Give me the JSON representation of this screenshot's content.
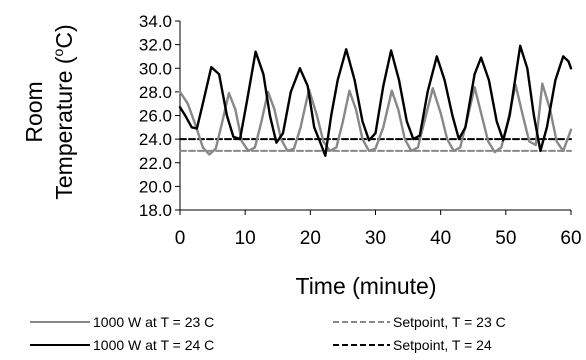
{
  "chart_data": {
    "type": "line",
    "xlabel": "Time (minute)",
    "ylabel_line1": "Room",
    "ylabel_line2": "Temperature (",
    "ylabel_sup": "o",
    "ylabel_end": "C)",
    "xlim": [
      0,
      60
    ],
    "ylim": [
      18,
      34
    ],
    "x_ticks": [
      0,
      10,
      20,
      30,
      40,
      50,
      60
    ],
    "y_ticks": [
      18,
      20,
      22,
      24,
      26,
      28,
      30,
      32,
      34
    ],
    "x_tick_labels": [
      "0",
      "10",
      "20",
      "30",
      "40",
      "50",
      "60"
    ],
    "y_tick_labels": [
      "18.0",
      "20.0",
      "22.0",
      "24.0",
      "26.0",
      "28.0",
      "30.0",
      "32.0",
      "34.0"
    ],
    "grid": false,
    "legend_position": "bottom",
    "series": [
      {
        "name": "1000 W at T = 23 C",
        "color": "#888888",
        "dash": "solid",
        "points": [
          [
            0,
            28.0
          ],
          [
            1.2,
            27.0
          ],
          [
            2.5,
            25.0
          ],
          [
            3.5,
            23.3
          ],
          [
            4.5,
            22.7
          ],
          [
            5.5,
            23.2
          ],
          [
            6.5,
            25.5
          ],
          [
            7.5,
            27.9
          ],
          [
            8.5,
            26.5
          ],
          [
            9.5,
            23.8
          ],
          [
            10.5,
            23.0
          ],
          [
            11.5,
            23.3
          ],
          [
            12.5,
            25.5
          ],
          [
            13.5,
            28.0
          ],
          [
            14.5,
            26.5
          ],
          [
            15.5,
            24.0
          ],
          [
            16.5,
            23.0
          ],
          [
            17.5,
            23.2
          ],
          [
            18.5,
            25.0
          ],
          [
            19.8,
            28.2
          ],
          [
            21.0,
            26.0
          ],
          [
            22.0,
            23.8
          ],
          [
            23.0,
            23.0
          ],
          [
            24.0,
            23.3
          ],
          [
            25.0,
            25.5
          ],
          [
            26.0,
            28.1
          ],
          [
            27.0,
            26.5
          ],
          [
            28.0,
            24.0
          ],
          [
            29.0,
            23.0
          ],
          [
            30.0,
            23.2
          ],
          [
            31.2,
            25.0
          ],
          [
            32.5,
            28.1
          ],
          [
            33.5,
            26.5
          ],
          [
            34.5,
            24.0
          ],
          [
            35.5,
            23.0
          ],
          [
            36.5,
            23.3
          ],
          [
            37.5,
            25.5
          ],
          [
            38.8,
            28.3
          ],
          [
            40.0,
            26.2
          ],
          [
            41.0,
            24.0
          ],
          [
            42.0,
            23.0
          ],
          [
            43.0,
            23.3
          ],
          [
            44.0,
            25.5
          ],
          [
            45.2,
            28.4
          ],
          [
            46.3,
            26.0
          ],
          [
            47.3,
            23.8
          ],
          [
            48.3,
            22.9
          ],
          [
            49.3,
            23.3
          ],
          [
            50.3,
            25.5
          ],
          [
            51.5,
            28.6
          ],
          [
            52.6,
            26.0
          ],
          [
            53.6,
            23.8
          ],
          [
            54.6,
            23.5
          ],
          [
            55.6,
            28.7
          ],
          [
            56.8,
            26.5
          ],
          [
            57.8,
            23.8
          ],
          [
            58.8,
            23.0
          ],
          [
            60.0,
            24.8
          ]
        ]
      },
      {
        "name": "1000 W at T = 24 C",
        "color": "#000000",
        "dash": "solid",
        "points": [
          [
            0,
            26.7
          ],
          [
            0.8,
            26.0
          ],
          [
            1.8,
            25.0
          ],
          [
            2.6,
            24.9
          ],
          [
            3.5,
            27.0
          ],
          [
            4.8,
            30.1
          ],
          [
            6.0,
            29.5
          ],
          [
            7.2,
            26.0
          ],
          [
            8.2,
            24.2
          ],
          [
            9.2,
            24.0
          ],
          [
            10.2,
            27.0
          ],
          [
            11.6,
            31.4
          ],
          [
            12.8,
            29.5
          ],
          [
            13.8,
            26.0
          ],
          [
            14.8,
            23.7
          ],
          [
            15.8,
            24.5
          ],
          [
            17.0,
            28.0
          ],
          [
            18.4,
            30.0
          ],
          [
            19.6,
            28.5
          ],
          [
            20.6,
            25.0
          ],
          [
            21.6,
            23.6
          ],
          [
            22.3,
            22.6
          ],
          [
            23.2,
            26.0
          ],
          [
            24.2,
            29.0
          ],
          [
            25.5,
            31.6
          ],
          [
            26.8,
            29.0
          ],
          [
            28.0,
            25.5
          ],
          [
            29.0,
            23.9
          ],
          [
            30.0,
            24.5
          ],
          [
            31.2,
            28.5
          ],
          [
            32.4,
            31.5
          ],
          [
            33.6,
            29.0
          ],
          [
            34.8,
            25.5
          ],
          [
            35.8,
            24.0
          ],
          [
            36.8,
            24.3
          ],
          [
            38.0,
            28.0
          ],
          [
            39.4,
            31.0
          ],
          [
            40.6,
            29.0
          ],
          [
            41.8,
            26.0
          ],
          [
            42.8,
            24.0
          ],
          [
            43.8,
            25.0
          ],
          [
            45.2,
            29.5
          ],
          [
            46.2,
            30.9
          ],
          [
            47.4,
            29.0
          ],
          [
            48.6,
            25.5
          ],
          [
            49.6,
            23.9
          ],
          [
            50.6,
            26.0
          ],
          [
            52.2,
            31.9
          ],
          [
            53.3,
            30.0
          ],
          [
            54.3,
            26.0
          ],
          [
            55.3,
            23.0
          ],
          [
            56.3,
            25.0
          ],
          [
            57.6,
            29.0
          ],
          [
            58.8,
            31.0
          ],
          [
            59.6,
            30.6
          ],
          [
            60.0,
            30.0
          ]
        ]
      },
      {
        "name": "Setpoint, T = 23 C",
        "color": "#888888",
        "dash": "dashed",
        "points": [
          [
            0,
            23.0
          ],
          [
            60,
            23.0
          ]
        ]
      },
      {
        "name": "Setpoint, T = 24",
        "color": "#000000",
        "dash": "dashed",
        "points": [
          [
            0,
            24.0
          ],
          [
            60,
            24.0
          ]
        ]
      }
    ]
  }
}
